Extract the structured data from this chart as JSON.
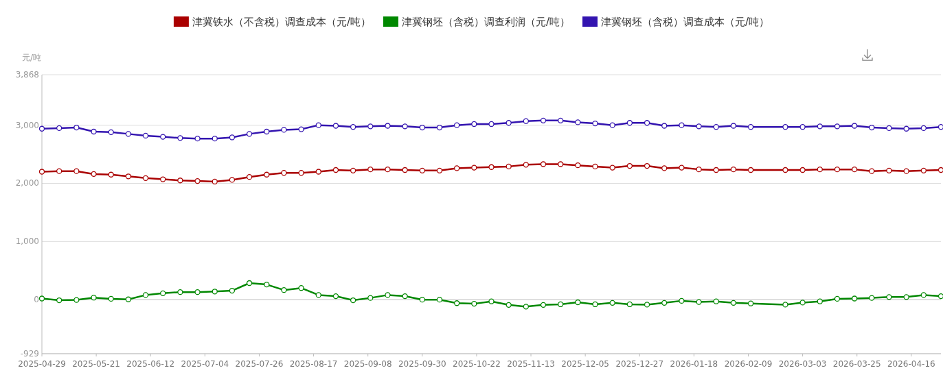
{
  "chart_data": {
    "type": "line",
    "ylabel": "元/吨",
    "x": [
      "2025-04-29",
      "2025-05-06",
      "2025-05-13",
      "2025-05-20",
      "2025-05-27",
      "2025-06-03",
      "2025-06-10",
      "2025-06-17",
      "2025-06-24",
      "2025-07-01",
      "2025-07-08",
      "2025-07-15",
      "2025-07-22",
      "2025-07-29",
      "2025-08-05",
      "2025-08-12",
      "2025-08-19",
      "2025-08-26",
      "2025-09-02",
      "2025-09-09",
      "2025-09-16",
      "2025-09-23",
      "2025-09-30",
      "2025-10-07",
      "2025-10-14",
      "2025-10-21",
      "2025-10-28",
      "2025-11-04",
      "2025-11-11",
      "2025-11-18",
      "2025-11-25",
      "2025-12-02",
      "2025-12-09",
      "2025-12-16",
      "2025-12-23",
      "2025-12-30",
      "2026-01-06",
      "2026-01-13",
      "2026-01-20",
      "2026-01-27",
      "2026-02-03",
      "2026-02-10",
      "2026-02-24",
      "2026-03-03",
      "2026-03-10",
      "2026-03-17",
      "2026-03-24",
      "2026-03-31",
      "2026-04-07",
      "2026-04-14",
      "2026-04-21",
      "2026-04-28"
    ],
    "series": [
      {
        "name": "津冀铁水（不含税）调查成本（元/吨）",
        "color": "#aa0000",
        "values": [
          2200,
          2210,
          2210,
          2160,
          2150,
          2120,
          2090,
          2070,
          2050,
          2040,
          2030,
          2060,
          2110,
          2150,
          2180,
          2180,
          2200,
          2230,
          2220,
          2240,
          2240,
          2230,
          2220,
          2220,
          2260,
          2270,
          2280,
          2290,
          2320,
          2330,
          2330,
          2310,
          2290,
          2270,
          2300,
          2300,
          2260,
          2270,
          2240,
          2230,
          2240,
          2230,
          2230,
          2230,
          2240,
          2240,
          2240,
          2210,
          2220,
          2210,
          2220,
          2230
        ]
      },
      {
        "name": "津冀钢坯（含税）调查利润（元/吨）",
        "color": "#008800",
        "values": [
          20,
          -10,
          -5,
          35,
          15,
          5,
          80,
          110,
          130,
          130,
          140,
          155,
          285,
          260,
          165,
          200,
          80,
          60,
          -10,
          30,
          80,
          60,
          0,
          0,
          -60,
          -70,
          -30,
          -90,
          -120,
          -90,
          -80,
          -45,
          -80,
          -55,
          -80,
          -85,
          -55,
          -20,
          -40,
          -30,
          -55,
          -65,
          -85,
          -50,
          -30,
          15,
          20,
          30,
          45,
          45,
          80,
          60
        ]
      },
      {
        "name": "津冀钢坯（含税）调查成本（元/吨）",
        "color": "#3314b0",
        "values": [
          2940,
          2950,
          2960,
          2890,
          2880,
          2850,
          2820,
          2800,
          2780,
          2770,
          2770,
          2790,
          2850,
          2890,
          2920,
          2930,
          3000,
          2990,
          2970,
          2980,
          2990,
          2980,
          2960,
          2960,
          3000,
          3020,
          3020,
          3040,
          3070,
          3080,
          3080,
          3050,
          3030,
          3000,
          3040,
          3040,
          2990,
          3000,
          2980,
          2970,
          2990,
          2970,
          2970,
          2970,
          2980,
          2980,
          2990,
          2960,
          2950,
          2940,
          2950,
          2970
        ]
      }
    ],
    "ylim": [
      -929,
      3868
    ],
    "yticks": [
      {
        "value": -929,
        "label": "-929"
      },
      0,
      {
        "value": 1000,
        "label": "1,000"
      },
      {
        "value": 2000,
        "label": "2,000"
      },
      {
        "value": 3000,
        "label": "3,000"
      },
      {
        "value": 3868,
        "label": "3,868"
      }
    ],
    "xlim": [
      "2025-04-29",
      "2026-04-28"
    ],
    "xticks": [
      "2025-04-29",
      "2025-05-21",
      "2025-06-12",
      "2025-07-04",
      "2025-07-26",
      "2025-08-17",
      "2025-09-08",
      "2025-09-30",
      "2025-10-22",
      "2025-11-13",
      "2025-12-05",
      "2025-12-27",
      "2026-01-18",
      "2026-02-09",
      "2026-03-03",
      "2026-03-25",
      "2026-04-16"
    ],
    "grid": "y",
    "legend": "top",
    "marker": "circle",
    "line_style": "solid"
  }
}
